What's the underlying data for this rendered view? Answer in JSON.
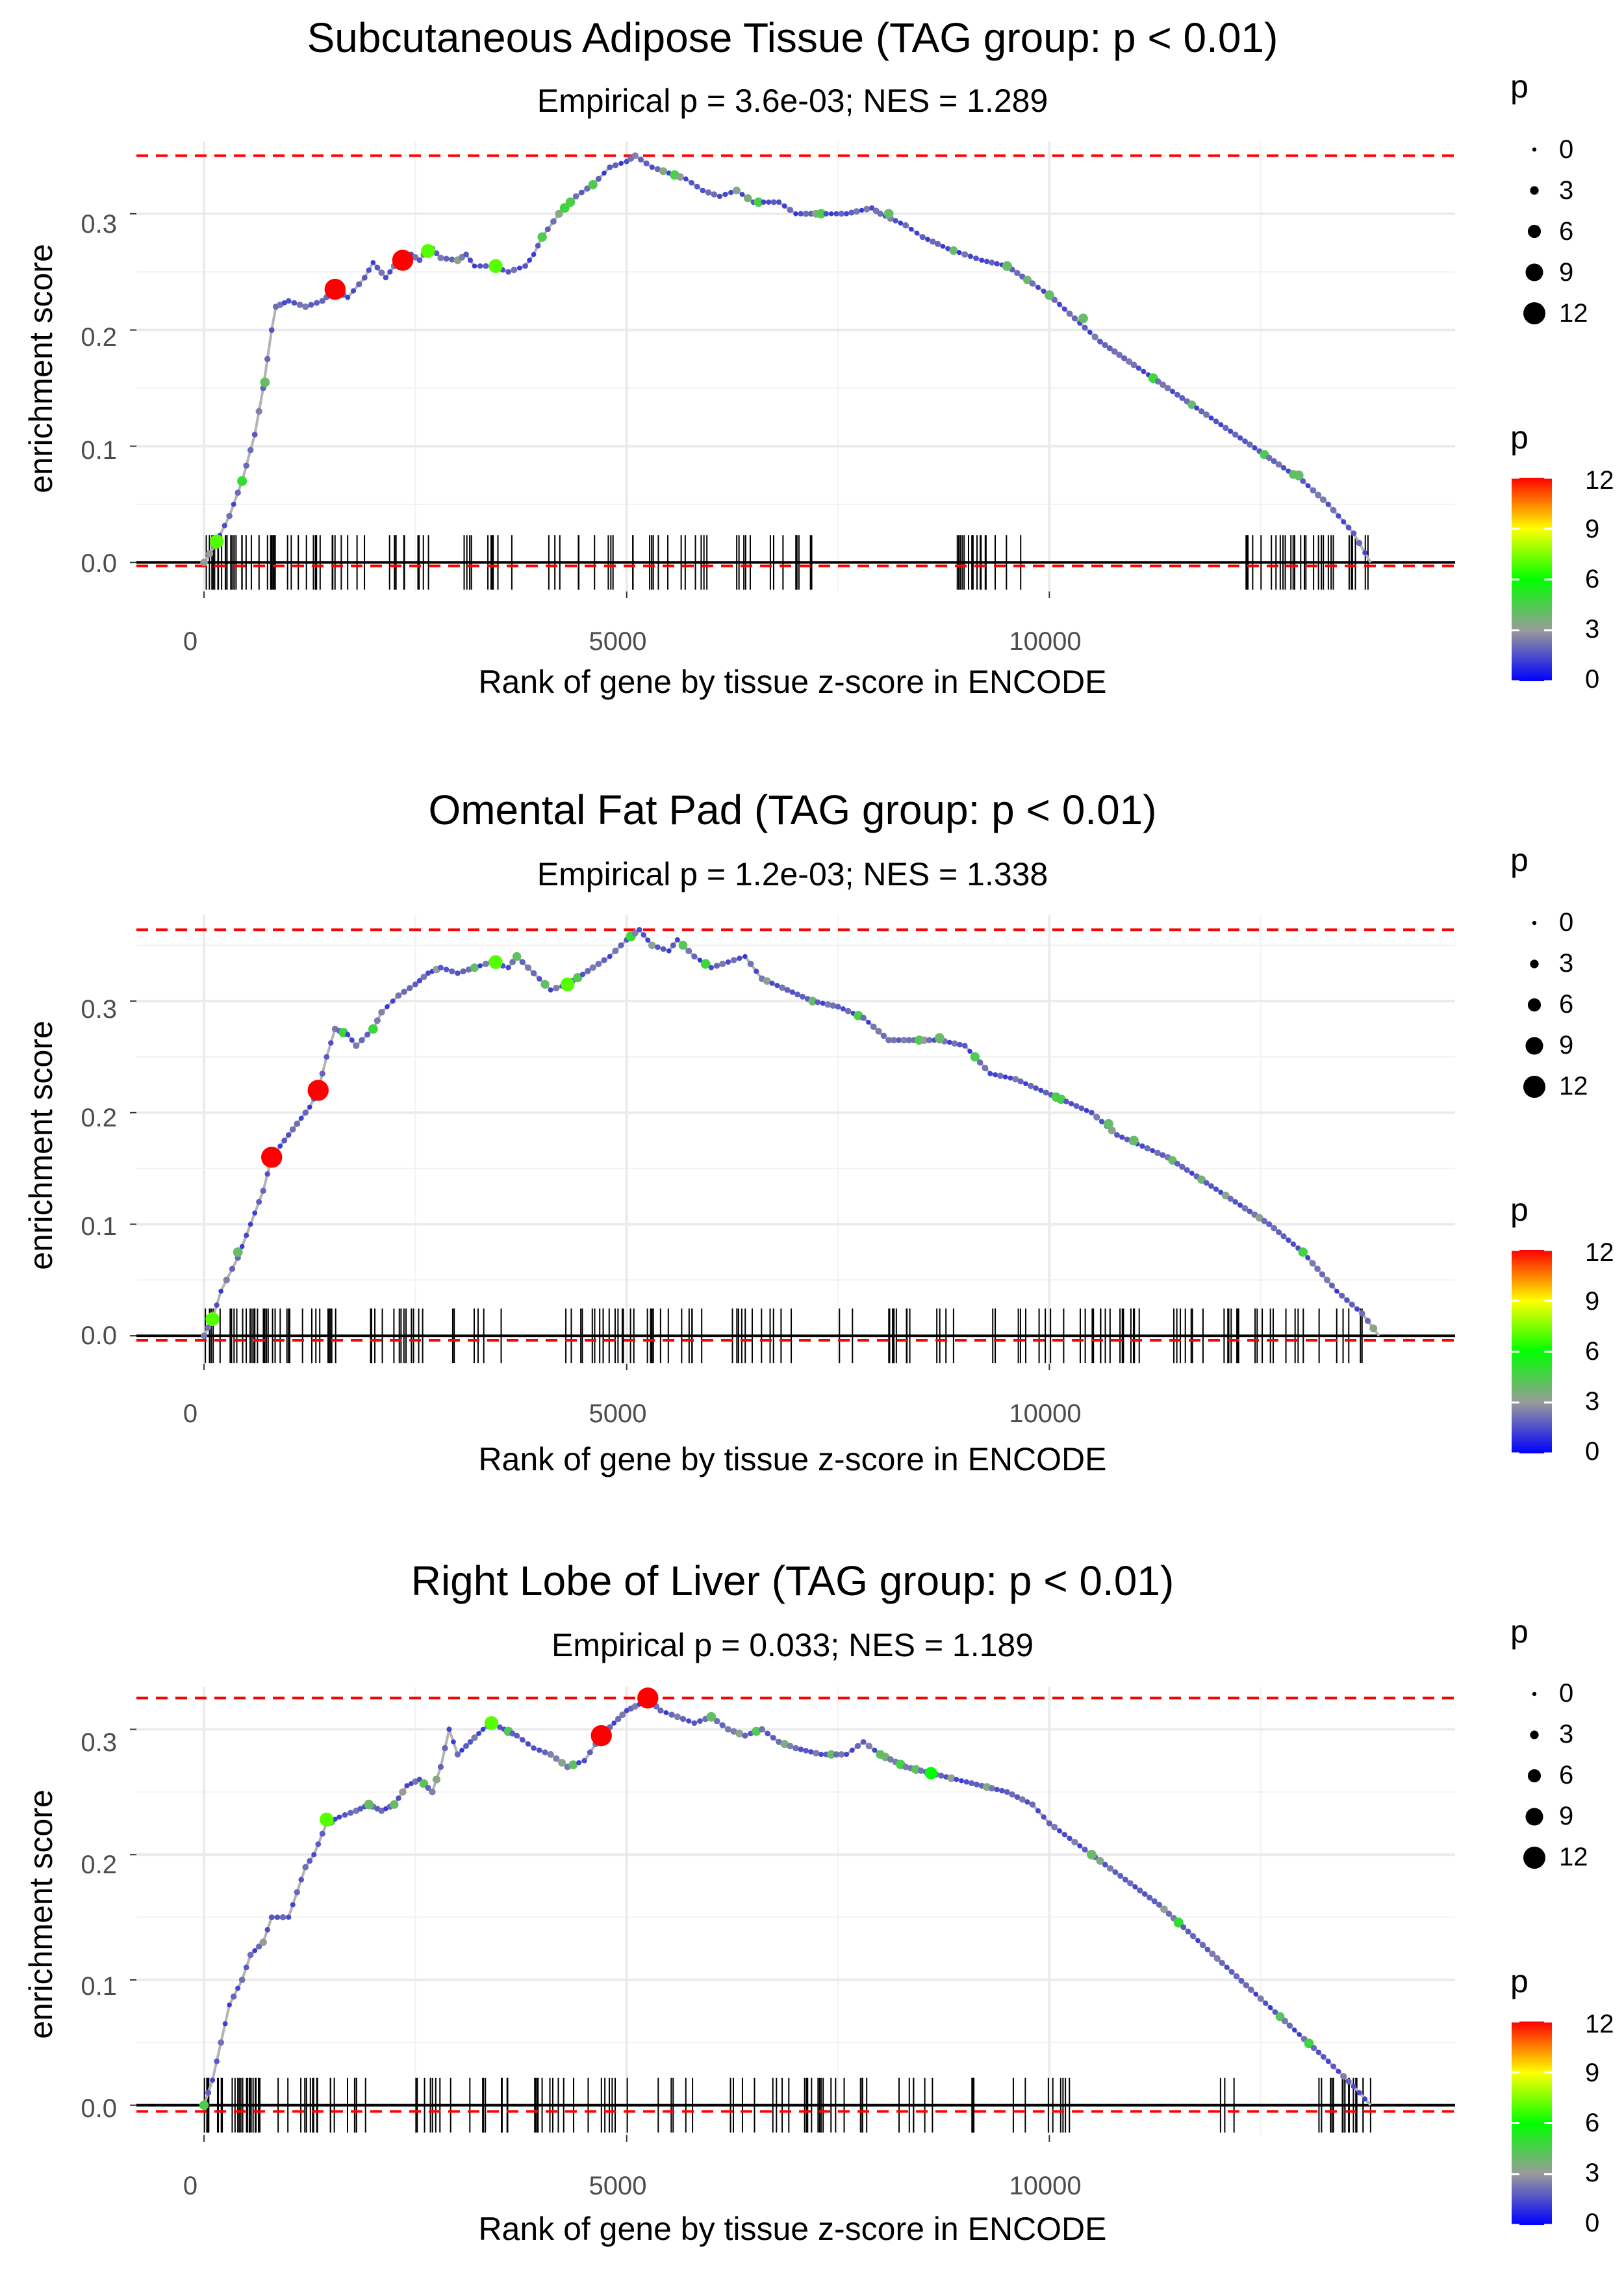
{
  "chart_data": [
    {
      "type": "line",
      "title": "Subcutaneous Adipose Tissue (TAG group: p < 0.01)",
      "subtitle": "Empirical p = 3.6e-03; NES = 1.289",
      "xlabel": "Rank of gene by tissue z-score in ENCODE",
      "ylabel": "enrichment score",
      "xlim": [
        -800,
        14800
      ],
      "ylim": [
        -0.025,
        0.362
      ],
      "xticks": [
        0,
        5000,
        10000
      ],
      "xtick_labels": [
        "0",
        "5000",
        "10000"
      ],
      "yticks": [
        0.0,
        0.1,
        0.2,
        0.3
      ],
      "ytick_labels": [
        "0.0",
        "0.1",
        "0.2",
        "0.3"
      ],
      "max_es": 0.35,
      "min_es": -0.003,
      "curve": [
        [
          0,
          0.0
        ],
        [
          130,
          0.015
        ],
        [
          300,
          0.04
        ],
        [
          450,
          0.07
        ],
        [
          600,
          0.11
        ],
        [
          700,
          0.15
        ],
        [
          800,
          0.2
        ],
        [
          850,
          0.22
        ],
        [
          1000,
          0.225
        ],
        [
          1200,
          0.22
        ],
        [
          1400,
          0.225
        ],
        [
          1550,
          0.235
        ],
        [
          1700,
          0.228
        ],
        [
          1900,
          0.245
        ],
        [
          2000,
          0.258
        ],
        [
          2150,
          0.245
        ],
        [
          2300,
          0.26
        ],
        [
          2450,
          0.265
        ],
        [
          2550,
          0.26
        ],
        [
          2650,
          0.27
        ],
        [
          2700,
          0.27
        ],
        [
          2800,
          0.262
        ],
        [
          3000,
          0.26
        ],
        [
          3100,
          0.265
        ],
        [
          3200,
          0.255
        ],
        [
          3400,
          0.255
        ],
        [
          3600,
          0.25
        ],
        [
          3800,
          0.255
        ],
        [
          3900,
          0.265
        ],
        [
          4000,
          0.28
        ],
        [
          4200,
          0.3
        ],
        [
          4400,
          0.315
        ],
        [
          4600,
          0.325
        ],
        [
          4800,
          0.34
        ],
        [
          5000,
          0.345
        ],
        [
          5100,
          0.35
        ],
        [
          5300,
          0.34
        ],
        [
          5500,
          0.335
        ],
        [
          5700,
          0.33
        ],
        [
          5900,
          0.32
        ],
        [
          6100,
          0.315
        ],
        [
          6300,
          0.32
        ],
        [
          6500,
          0.31
        ],
        [
          6800,
          0.31
        ],
        [
          7000,
          0.3
        ],
        [
          7300,
          0.3
        ],
        [
          7600,
          0.3
        ],
        [
          7900,
          0.305
        ],
        [
          8000,
          0.3
        ],
        [
          8300,
          0.29
        ],
        [
          8500,
          0.28
        ],
        [
          8800,
          0.27
        ],
        [
          9000,
          0.265
        ],
        [
          9200,
          0.26
        ],
        [
          9500,
          0.255
        ],
        [
          9800,
          0.24
        ],
        [
          10000,
          0.23
        ],
        [
          10300,
          0.21
        ],
        [
          10600,
          0.19
        ],
        [
          11000,
          0.17
        ],
        [
          11400,
          0.15
        ],
        [
          11800,
          0.13
        ],
        [
          12200,
          0.11
        ],
        [
          12600,
          0.09
        ],
        [
          13000,
          0.07
        ],
        [
          13300,
          0.05
        ],
        [
          13600,
          0.025
        ],
        [
          13800,
          0.0
        ]
      ],
      "highlighted_points": [
        {
          "x": 1550,
          "y": 0.235,
          "p": 12
        },
        {
          "x": 2350,
          "y": 0.26,
          "p": 12
        },
        {
          "x": 2650,
          "y": 0.268,
          "p": 7
        },
        {
          "x": 3450,
          "y": 0.255,
          "p": 7
        },
        {
          "x": 150,
          "y": 0.018,
          "p": 7
        },
        {
          "x": 720,
          "y": 0.155,
          "p": 4
        },
        {
          "x": 8100,
          "y": 0.3,
          "p": 4
        },
        {
          "x": 9500,
          "y": 0.255,
          "p": 4
        },
        {
          "x": 10000,
          "y": 0.23,
          "p": 4
        },
        {
          "x": 10400,
          "y": 0.21,
          "p": 4
        },
        {
          "x": 12950,
          "y": 0.075,
          "p": 4
        }
      ],
      "rug_regions": [
        [
          0,
          900,
          28
        ],
        [
          950,
          1900,
          16
        ],
        [
          2150,
          2700,
          10
        ],
        [
          2900,
          3200,
          4
        ],
        [
          3300,
          3650,
          6
        ],
        [
          4000,
          6000,
          22
        ],
        [
          6300,
          7200,
          14
        ],
        [
          8900,
          9700,
          16
        ],
        [
          12300,
          13800,
          30
        ]
      ],
      "size_legend": {
        "title": "p",
        "labels": [
          "0",
          "3",
          "6",
          "9",
          "12"
        ]
      },
      "color_legend": {
        "title": "p",
        "labels": [
          "12",
          "9",
          "6",
          "3",
          "0"
        ]
      }
    },
    {
      "type": "line",
      "title": "Omental Fat Pad (TAG group: p < 0.01)",
      "subtitle": "Empirical p = 1.2e-03; NES = 1.338",
      "xlabel": "Rank of gene by tissue z-score in ENCODE",
      "ylabel": "enrichment score",
      "xlim": [
        -800,
        14800
      ],
      "ylim": [
        -0.025,
        0.377
      ],
      "xticks": [
        0,
        5000,
        10000
      ],
      "xtick_labels": [
        "0",
        "5000",
        "10000"
      ],
      "yticks": [
        0.0,
        0.1,
        0.2,
        0.3
      ],
      "ytick_labels": [
        "0.0",
        "0.1",
        "0.2",
        "0.3"
      ],
      "max_es": 0.364,
      "min_es": -0.004,
      "curve": [
        [
          0,
          0.0
        ],
        [
          100,
          0.015
        ],
        [
          200,
          0.04
        ],
        [
          400,
          0.07
        ],
        [
          550,
          0.1
        ],
        [
          700,
          0.13
        ],
        [
          800,
          0.16
        ],
        [
          950,
          0.175
        ],
        [
          1100,
          0.19
        ],
        [
          1250,
          0.205
        ],
        [
          1350,
          0.22
        ],
        [
          1450,
          0.25
        ],
        [
          1550,
          0.275
        ],
        [
          1700,
          0.27
        ],
        [
          1800,
          0.26
        ],
        [
          2000,
          0.275
        ],
        [
          2100,
          0.29
        ],
        [
          2300,
          0.305
        ],
        [
          2500,
          0.315
        ],
        [
          2650,
          0.325
        ],
        [
          2800,
          0.33
        ],
        [
          3000,
          0.325
        ],
        [
          3200,
          0.33
        ],
        [
          3400,
          0.335
        ],
        [
          3600,
          0.33
        ],
        [
          3700,
          0.34
        ],
        [
          3900,
          0.325
        ],
        [
          4100,
          0.31
        ],
        [
          4300,
          0.315
        ],
        [
          4600,
          0.33
        ],
        [
          4800,
          0.34
        ],
        [
          5000,
          0.355
        ],
        [
          5150,
          0.364
        ],
        [
          5300,
          0.35
        ],
        [
          5500,
          0.345
        ],
        [
          5600,
          0.355
        ],
        [
          5800,
          0.34
        ],
        [
          6000,
          0.33
        ],
        [
          6200,
          0.335
        ],
        [
          6400,
          0.34
        ],
        [
          6600,
          0.32
        ],
        [
          6900,
          0.31
        ],
        [
          7200,
          0.3
        ],
        [
          7500,
          0.295
        ],
        [
          7800,
          0.285
        ],
        [
          8100,
          0.265
        ],
        [
          8400,
          0.265
        ],
        [
          8700,
          0.265
        ],
        [
          9000,
          0.26
        ],
        [
          9300,
          0.235
        ],
        [
          9600,
          0.23
        ],
        [
          9900,
          0.22
        ],
        [
          10200,
          0.21
        ],
        [
          10500,
          0.2
        ],
        [
          10800,
          0.18
        ],
        [
          11100,
          0.17
        ],
        [
          11400,
          0.16
        ],
        [
          11800,
          0.14
        ],
        [
          12200,
          0.12
        ],
        [
          12600,
          0.1
        ],
        [
          13000,
          0.075
        ],
        [
          13400,
          0.04
        ],
        [
          13700,
          0.02
        ],
        [
          13900,
          0.0
        ]
      ],
      "highlighted_points": [
        {
          "x": 800,
          "y": 0.16,
          "p": 12
        },
        {
          "x": 1350,
          "y": 0.22,
          "p": 12
        },
        {
          "x": 3450,
          "y": 0.335,
          "p": 7
        },
        {
          "x": 4300,
          "y": 0.315,
          "p": 7
        },
        {
          "x": 400,
          "y": 0.075,
          "p": 4
        },
        {
          "x": 100,
          "y": 0.015,
          "p": 7
        },
        {
          "x": 8700,
          "y": 0.267,
          "p": 4
        },
        {
          "x": 10700,
          "y": 0.19,
          "p": 4
        },
        {
          "x": 11000,
          "y": 0.175,
          "p": 4
        }
      ],
      "rug_regions": [
        [
          0,
          1700,
          40
        ],
        [
          1900,
          2700,
          14
        ],
        [
          2900,
          3600,
          6
        ],
        [
          4200,
          5900,
          28
        ],
        [
          6000,
          7000,
          12
        ],
        [
          7500,
          7700,
          2
        ],
        [
          8000,
          9400,
          16
        ],
        [
          9600,
          11100,
          22
        ],
        [
          11400,
          13700,
          30
        ]
      ],
      "size_legend": {
        "title": "p",
        "labels": [
          "0",
          "3",
          "6",
          "9",
          "12"
        ]
      },
      "color_legend": {
        "title": "p",
        "labels": [
          "12",
          "9",
          "6",
          "3",
          "0"
        ]
      }
    },
    {
      "type": "line",
      "title": "Right Lobe of Liver (TAG group: p < 0.01)",
      "subtitle": "Empirical p = 0.033; NES = 1.189",
      "xlabel": "Rank of gene by tissue z-score in ENCODE",
      "ylabel": "enrichment score",
      "xlim": [
        -800,
        14800
      ],
      "ylim": [
        -0.024,
        0.334
      ],
      "xticks": [
        0,
        5000,
        10000
      ],
      "xtick_labels": [
        "0",
        "5000",
        "10000"
      ],
      "yticks": [
        0.0,
        0.1,
        0.2,
        0.3
      ],
      "ytick_labels": [
        "0.0",
        "0.1",
        "0.2",
        "0.3"
      ],
      "max_es": 0.325,
      "min_es": -0.005,
      "curve": [
        [
          0,
          0.0
        ],
        [
          100,
          0.02
        ],
        [
          200,
          0.05
        ],
        [
          300,
          0.08
        ],
        [
          450,
          0.1
        ],
        [
          550,
          0.12
        ],
        [
          700,
          0.13
        ],
        [
          800,
          0.15
        ],
        [
          1000,
          0.15
        ],
        [
          1100,
          0.17
        ],
        [
          1200,
          0.19
        ],
        [
          1300,
          0.2
        ],
        [
          1450,
          0.225
        ],
        [
          1600,
          0.23
        ],
        [
          1800,
          0.235
        ],
        [
          1950,
          0.24
        ],
        [
          2100,
          0.235
        ],
        [
          2250,
          0.24
        ],
        [
          2400,
          0.255
        ],
        [
          2550,
          0.26
        ],
        [
          2700,
          0.25
        ],
        [
          2800,
          0.27
        ],
        [
          2900,
          0.3
        ],
        [
          3000,
          0.28
        ],
        [
          3150,
          0.29
        ],
        [
          3300,
          0.3
        ],
        [
          3400,
          0.305
        ],
        [
          3550,
          0.3
        ],
        [
          3700,
          0.295
        ],
        [
          3900,
          0.285
        ],
        [
          4100,
          0.28
        ],
        [
          4300,
          0.27
        ],
        [
          4500,
          0.275
        ],
        [
          4700,
          0.295
        ],
        [
          4850,
          0.305
        ],
        [
          5000,
          0.315
        ],
        [
          5150,
          0.32
        ],
        [
          5250,
          0.325
        ],
        [
          5400,
          0.315
        ],
        [
          5600,
          0.31
        ],
        [
          5800,
          0.305
        ],
        [
          6000,
          0.31
        ],
        [
          6200,
          0.3
        ],
        [
          6400,
          0.295
        ],
        [
          6600,
          0.3
        ],
        [
          6800,
          0.29
        ],
        [
          7000,
          0.285
        ],
        [
          7300,
          0.28
        ],
        [
          7600,
          0.28
        ],
        [
          7800,
          0.29
        ],
        [
          8000,
          0.28
        ],
        [
          8300,
          0.27
        ],
        [
          8600,
          0.265
        ],
        [
          8900,
          0.26
        ],
        [
          9200,
          0.255
        ],
        [
          9500,
          0.25
        ],
        [
          9800,
          0.24
        ],
        [
          10000,
          0.225
        ],
        [
          10300,
          0.21
        ],
        [
          10600,
          0.195
        ],
        [
          10900,
          0.18
        ],
        [
          11300,
          0.16
        ],
        [
          11700,
          0.135
        ],
        [
          12100,
          0.11
        ],
        [
          12500,
          0.085
        ],
        [
          12900,
          0.06
        ],
        [
          13300,
          0.035
        ],
        [
          13600,
          0.015
        ],
        [
          13800,
          0.0
        ]
      ],
      "highlighted_points": [
        {
          "x": 5250,
          "y": 0.325,
          "p": 12
        },
        {
          "x": 4700,
          "y": 0.295,
          "p": 12
        },
        {
          "x": 3400,
          "y": 0.305,
          "p": 7
        },
        {
          "x": 1450,
          "y": 0.228,
          "p": 7
        },
        {
          "x": 1950,
          "y": 0.24,
          "p": 4
        },
        {
          "x": 6000,
          "y": 0.31,
          "p": 4
        },
        {
          "x": 8600,
          "y": 0.265,
          "p": 6
        },
        {
          "x": 10500,
          "y": 0.2,
          "p": 4
        }
      ],
      "rug_regions": [
        [
          0,
          700,
          26
        ],
        [
          800,
          2000,
          18
        ],
        [
          2200,
          3600,
          16
        ],
        [
          3800,
          5900,
          22
        ],
        [
          6000,
          7900,
          24
        ],
        [
          8200,
          9200,
          10
        ],
        [
          9500,
          10300,
          8
        ],
        [
          12000,
          12200,
          3
        ],
        [
          13100,
          13800,
          18
        ]
      ],
      "size_legend": {
        "title": "p",
        "labels": [
          "0",
          "3",
          "6",
          "9",
          "12"
        ]
      },
      "color_legend": {
        "title": "p",
        "labels": [
          "12",
          "9",
          "6",
          "3",
          "0"
        ]
      }
    }
  ]
}
